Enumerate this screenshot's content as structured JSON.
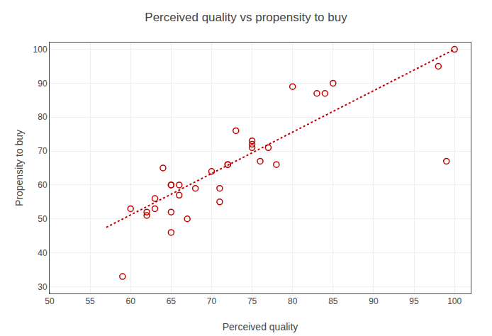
{
  "chart_data": {
    "type": "scatter",
    "title": "Perceived quality vs propensity to buy",
    "xlabel": "Perceived quality",
    "ylabel": "Propensity to buy",
    "xlim": [
      50,
      102
    ],
    "ylim": [
      28,
      102
    ],
    "xticks": [
      50,
      55,
      60,
      65,
      70,
      75,
      80,
      85,
      90,
      95,
      100
    ],
    "yticks": [
      30,
      40,
      50,
      60,
      70,
      80,
      90,
      100
    ],
    "grid": true,
    "series": [
      {
        "type": "scatter",
        "x": [
          59,
          60,
          62,
          62,
          63,
          63,
          64,
          65,
          65,
          65,
          65,
          66,
          66,
          67,
          68,
          70,
          71,
          71,
          72,
          72,
          73,
          75,
          75,
          75,
          76,
          77,
          78,
          80,
          83,
          84,
          85,
          98,
          99,
          100
        ],
        "values": [
          33,
          53,
          51,
          52,
          53,
          56,
          65,
          46,
          52,
          60,
          60,
          57,
          60,
          50,
          59,
          64,
          55,
          59,
          66,
          66,
          76,
          71,
          72,
          73,
          67,
          71,
          66,
          89,
          87,
          87,
          90,
          95,
          67,
          100
        ],
        "color": "#c00000",
        "marker": "circle-open"
      },
      {
        "type": "line",
        "x": [
          57,
          100
        ],
        "values": [
          47.5,
          100
        ],
        "color": "#c00000",
        "line_style": "dotted"
      }
    ]
  }
}
